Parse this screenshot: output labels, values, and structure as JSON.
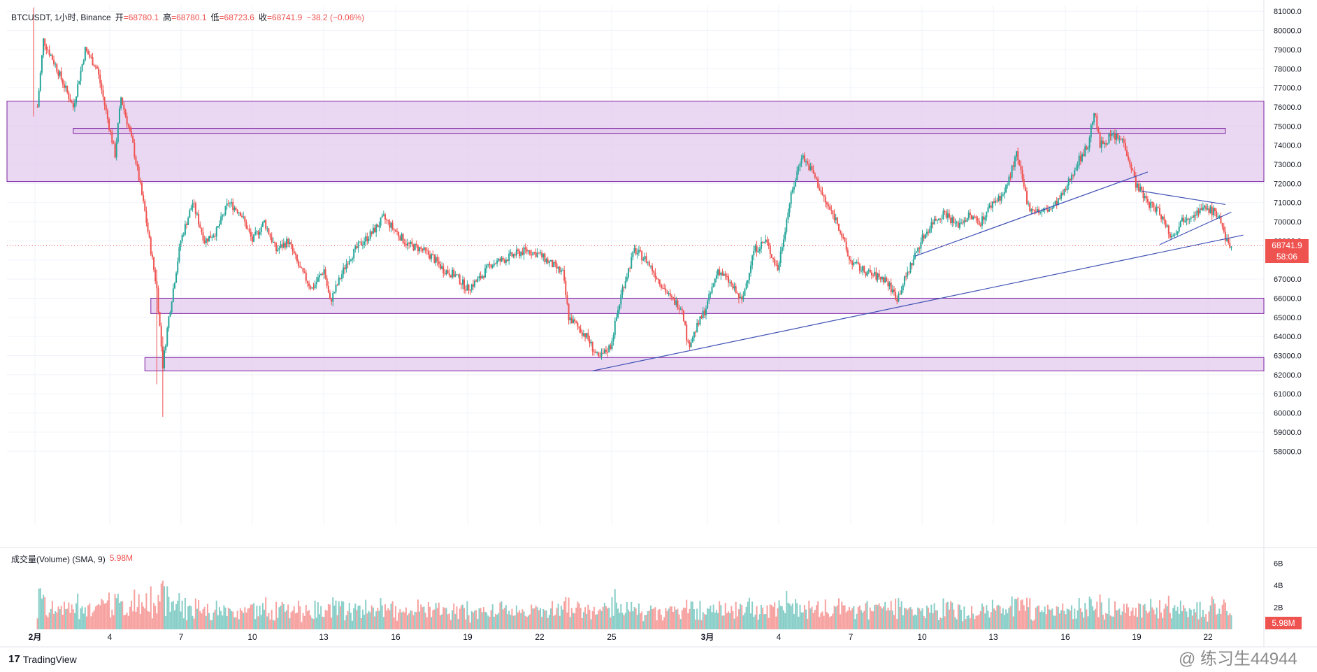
{
  "header": {
    "symbol": "BTCUSDT, 1小时, Binance",
    "open_label": "开",
    "open": "=68780.1",
    "high_label": "高",
    "high": "=68780.1",
    "low_label": "低",
    "low": "=68723.6",
    "close_label": "收",
    "close": "=68741.9",
    "change": "−38.2 (−0.06%)"
  },
  "volume_legend": {
    "label": "成交量(Volume) (SMA, 9)",
    "value": "5.98M"
  },
  "price_tag": {
    "price": "68741.9",
    "countdown": "58:06"
  },
  "volume_tag": "5.98M",
  "brand": {
    "logo": "17",
    "name": "TradingView"
  },
  "watermark": "@ 练习生44944",
  "colors": {
    "up": "#26a69a",
    "down": "#ef5350",
    "zone_fill": "#e1c6ec",
    "zone_border": "#7b1fa2",
    "trendline": "#3f51b5"
  },
  "chart_data": {
    "type": "candlestick",
    "price_axis": {
      "ticks": [
        81000,
        80000,
        79000,
        78000,
        77000,
        76000,
        75000,
        74000,
        73000,
        72000,
        71000,
        70000,
        69000,
        68000,
        67000,
        66000,
        65000,
        64000,
        63000,
        62000,
        61000,
        60000,
        59000,
        58000
      ],
      "tick_labels": [
        "81000.0",
        "80000.0",
        "79000.0",
        "78000.0",
        "77000.0",
        "76000.0",
        "75000.0",
        "74000.0",
        "73000.0",
        "72000.0",
        "71000.0",
        "70000.0",
        "69000.0",
        "68000.0",
        "67000.0",
        "66000.0",
        "65000.0",
        "64000.0",
        "63000.0",
        "62000.0",
        "61000.0",
        "60000.0",
        "59000.0",
        "58000.0"
      ],
      "range": [
        57900,
        81300
      ]
    },
    "volume_axis": {
      "tick_labels": [
        "6B",
        "4B",
        "2B"
      ],
      "ticks": [
        6,
        4,
        2
      ],
      "unit": "B"
    },
    "time_axis": {
      "labels": [
        "2月",
        "4",
        "7",
        "10",
        "13",
        "16",
        "19",
        "22",
        "25",
        "3月",
        "4",
        "7",
        "10",
        "13",
        "16",
        "19",
        "22"
      ],
      "range": [
        "2026-02-01 00:00",
        "2026-03-23 12:00"
      ]
    },
    "price_path": [
      [
        "2026-02-01 06:00",
        76000
      ],
      [
        "2026-02-01 12:00",
        79500
      ],
      [
        "2026-02-02 00:00",
        78200
      ],
      [
        "2026-02-02 18:00",
        76000
      ],
      [
        "2026-02-03 06:00",
        79000
      ],
      [
        "2026-02-03 18:00",
        78000
      ],
      [
        "2026-02-04 12:00",
        73500
      ],
      [
        "2026-02-04 18:00",
        76500
      ],
      [
        "2026-02-05 06:00",
        74000
      ],
      [
        "2026-02-05 18:00",
        70500
      ],
      [
        "2026-02-06 06:00",
        66500
      ],
      [
        "2026-02-06 12:00",
        62500
      ],
      [
        "2026-02-06 18:00",
        65000
      ],
      [
        "2026-02-07 06:00",
        69000
      ],
      [
        "2026-02-07 18:00",
        71000
      ],
      [
        "2026-02-08 06:00",
        69000
      ],
      [
        "2026-02-08 18:00",
        69500
      ],
      [
        "2026-02-09 06:00",
        71000
      ],
      [
        "2026-02-09 18:00",
        70500
      ],
      [
        "2026-02-10 06:00",
        69000
      ],
      [
        "2026-02-10 18:00",
        70000
      ],
      [
        "2026-02-11 06:00",
        68500
      ],
      [
        "2026-02-11 18:00",
        69000
      ],
      [
        "2026-02-12 06:00",
        67500
      ],
      [
        "2026-02-12 18:00",
        66500
      ],
      [
        "2026-02-13 06:00",
        67500
      ],
      [
        "2026-02-13 12:00",
        65800
      ],
      [
        "2026-02-14 06:00",
        68000
      ],
      [
        "2026-02-14 18:00",
        68800
      ],
      [
        "2026-02-15 06:00",
        69400
      ],
      [
        "2026-02-15 18:00",
        70200
      ],
      [
        "2026-02-16 06:00",
        69500
      ],
      [
        "2026-02-16 18:00",
        68800
      ],
      [
        "2026-02-17 06:00",
        68600
      ],
      [
        "2026-02-17 18:00",
        68200
      ],
      [
        "2026-02-18 06:00",
        67500
      ],
      [
        "2026-02-18 18:00",
        67200
      ],
      [
        "2026-02-19 06:00",
        66500
      ],
      [
        "2026-02-19 18:00",
        67000
      ],
      [
        "2026-02-20 06:00",
        67800
      ],
      [
        "2026-02-20 18:00",
        68000
      ],
      [
        "2026-02-21 06:00",
        68300
      ],
      [
        "2026-02-21 18:00",
        68500
      ],
      [
        "2026-02-22 06:00",
        68300
      ],
      [
        "2026-02-22 18:00",
        67800
      ],
      [
        "2026-02-23 06:00",
        67300
      ],
      [
        "2026-02-23 12:00",
        65000
      ],
      [
        "2026-02-24 06:00",
        64000
      ],
      [
        "2026-02-24 18:00",
        62800
      ],
      [
        "2026-02-25 06:00",
        63500
      ],
      [
        "2026-02-25 18:00",
        66500
      ],
      [
        "2026-02-26 06:00",
        68500
      ],
      [
        "2026-02-26 18:00",
        68000
      ],
      [
        "2026-02-27 06:00",
        67000
      ],
      [
        "2026-02-27 18:00",
        66000
      ],
      [
        "2026-02-28 06:00",
        65500
      ],
      [
        "2026-02-28 12:00",
        63500
      ],
      [
        "2026-03-01 06:00",
        65500
      ],
      [
        "2026-03-01 18:00",
        67500
      ],
      [
        "2026-03-02 06:00",
        66800
      ],
      [
        "2026-03-02 18:00",
        65800
      ],
      [
        "2026-03-03 06:00",
        68500
      ],
      [
        "2026-03-03 18:00",
        69000
      ],
      [
        "2026-03-04 06:00",
        67500
      ],
      [
        "2026-03-04 18:00",
        71000
      ],
      [
        "2026-03-05 06:00",
        73500
      ],
      [
        "2026-03-05 18:00",
        72500
      ],
      [
        "2026-03-06 06:00",
        71000
      ],
      [
        "2026-03-06 18:00",
        70000
      ],
      [
        "2026-03-07 06:00",
        68000
      ],
      [
        "2026-03-07 18:00",
        67500
      ],
      [
        "2026-03-08 06:00",
        67200
      ],
      [
        "2026-03-08 18:00",
        67000
      ],
      [
        "2026-03-09 06:00",
        66000
      ],
      [
        "2026-03-09 18:00",
        67500
      ],
      [
        "2026-03-10 06:00",
        69000
      ],
      [
        "2026-03-10 18:00",
        70000
      ],
      [
        "2026-03-11 06:00",
        70500
      ],
      [
        "2026-03-11 18:00",
        69800
      ],
      [
        "2026-03-12 06:00",
        70300
      ],
      [
        "2026-03-12 18:00",
        70000
      ],
      [
        "2026-03-13 06:00",
        71000
      ],
      [
        "2026-03-13 18:00",
        71500
      ],
      [
        "2026-03-14 06:00",
        73500
      ],
      [
        "2026-03-14 18:00",
        70800
      ],
      [
        "2026-03-15 06:00",
        70500
      ],
      [
        "2026-03-15 18:00",
        70700
      ],
      [
        "2026-03-16 06:00",
        71500
      ],
      [
        "2026-03-16 18:00",
        73000
      ],
      [
        "2026-03-17 06:00",
        74000
      ],
      [
        "2026-03-17 12:00",
        75800
      ],
      [
        "2026-03-17 18:00",
        74000
      ],
      [
        "2026-03-18 06:00",
        74500
      ],
      [
        "2026-03-18 18:00",
        74200
      ],
      [
        "2026-03-19 06:00",
        72000
      ],
      [
        "2026-03-19 18:00",
        71000
      ],
      [
        "2026-03-20 06:00",
        70500
      ],
      [
        "2026-03-20 18:00",
        69200
      ],
      [
        "2026-03-21 06:00",
        70200
      ],
      [
        "2026-03-21 18:00",
        70500
      ],
      [
        "2026-03-22 06:00",
        70700
      ],
      [
        "2026-03-22 18:00",
        70300
      ],
      [
        "2026-03-23 00:00",
        69000
      ],
      [
        "2026-03-23 06:00",
        68742
      ]
    ],
    "extreme_wicks": [
      [
        "2026-02-01 02:00",
        81200,
        75500
      ],
      [
        "2026-02-06 12:00",
        64000,
        59800
      ],
      [
        "2026-02-06 06:00",
        67500,
        61500
      ]
    ],
    "zones": [
      {
        "top": 76300,
        "bottom": 72100
      },
      {
        "top": 74880,
        "bottom": 74620,
        "from": "2026-02-02 18:00",
        "to": "2026-03-23 00:00"
      },
      {
        "top": 66000,
        "bottom": 65200,
        "from": "2026-02-06 00:00"
      },
      {
        "top": 62900,
        "bottom": 62200,
        "from": "2026-02-05 18:00"
      }
    ],
    "trendlines": [
      {
        "from": [
          "2026-02-24 12:00",
          62200
        ],
        "to": [
          "2026-03-23 18:00",
          69300
        ]
      },
      {
        "from": [
          "2026-03-10 00:00",
          68200
        ],
        "to": [
          "2026-03-19 18:00",
          72600
        ]
      },
      {
        "from": [
          "2026-03-19 12:00",
          71600
        ],
        "to": [
          "2026-03-23 00:00",
          70900
        ]
      },
      {
        "from": [
          "2026-03-20 06:00",
          68800
        ],
        "to": [
          "2026-03-23 06:00",
          70500
        ]
      }
    ],
    "current_price": 68741.9,
    "volume_sma": "5.98M",
    "grid": true
  }
}
